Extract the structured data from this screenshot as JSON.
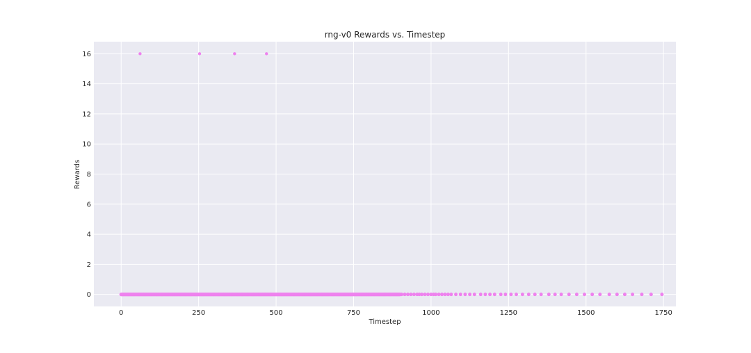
{
  "chart_data": {
    "type": "scatter",
    "title": "rng-v0 Rewards vs. Timestep",
    "xlabel": "Timestep",
    "ylabel": "Rewards",
    "xlim": [
      -88,
      1790
    ],
    "ylim": [
      -0.8,
      16.8
    ],
    "xticks": [
      0,
      250,
      500,
      750,
      1000,
      1250,
      1500,
      1750
    ],
    "yticks": [
      0,
      2,
      4,
      6,
      8,
      10,
      12,
      14,
      16
    ],
    "grid": true,
    "background": "#eaeaf2",
    "grid_color": "#ffffff",
    "point_color": "#ee82ee",
    "series": [
      {
        "high_reward_points": [
          [
            61,
            16
          ],
          [
            253,
            16
          ],
          [
            366,
            16
          ],
          [
            469,
            16
          ]
        ],
        "zero_reward_dense_range": [
          0,
          900
        ],
        "zero_reward_sparse_points": [
          [
            905,
            0
          ],
          [
            915,
            0
          ],
          [
            925,
            0
          ],
          [
            935,
            0
          ],
          [
            945,
            0
          ],
          [
            955,
            0
          ],
          [
            962,
            0
          ],
          [
            970,
            0
          ],
          [
            980,
            0
          ],
          [
            990,
            0
          ],
          [
            1000,
            0
          ],
          [
            1008,
            0
          ],
          [
            1015,
            0
          ],
          [
            1025,
            0
          ],
          [
            1035,
            0
          ],
          [
            1045,
            0
          ],
          [
            1055,
            0
          ],
          [
            1065,
            0
          ],
          [
            1080,
            0
          ],
          [
            1095,
            0
          ],
          [
            1110,
            0
          ],
          [
            1125,
            0
          ],
          [
            1140,
            0
          ],
          [
            1160,
            0
          ],
          [
            1175,
            0
          ],
          [
            1190,
            0
          ],
          [
            1205,
            0
          ],
          [
            1225,
            0
          ],
          [
            1240,
            0
          ],
          [
            1258,
            0
          ],
          [
            1275,
            0
          ],
          [
            1295,
            0
          ],
          [
            1315,
            0
          ],
          [
            1335,
            0
          ],
          [
            1355,
            0
          ],
          [
            1380,
            0
          ],
          [
            1400,
            0
          ],
          [
            1420,
            0
          ],
          [
            1445,
            0
          ],
          [
            1470,
            0
          ],
          [
            1495,
            0
          ],
          [
            1520,
            0
          ],
          [
            1545,
            0
          ],
          [
            1575,
            0
          ],
          [
            1600,
            0
          ],
          [
            1625,
            0
          ],
          [
            1650,
            0
          ],
          [
            1680,
            0
          ],
          [
            1710,
            0
          ],
          [
            1745,
            0
          ]
        ]
      }
    ]
  }
}
